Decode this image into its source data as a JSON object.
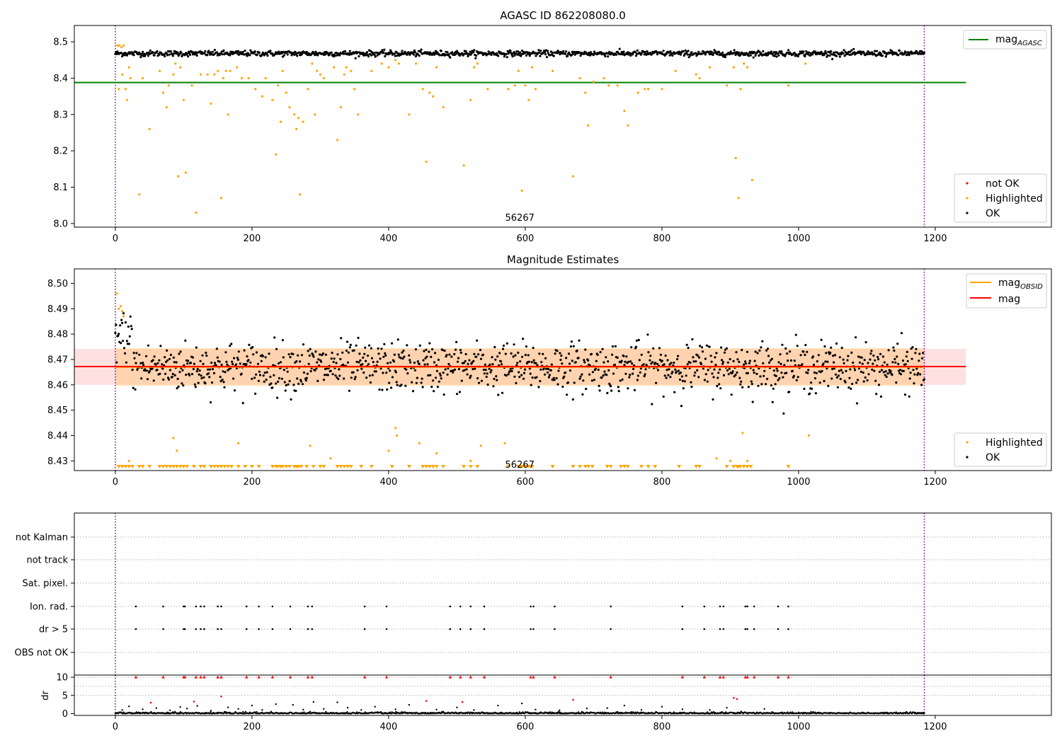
{
  "chart_data": [
    {
      "type": "scatter",
      "title": "AGASC ID 862208080.0",
      "xlim": [
        -60,
        1370
      ],
      "ylim": [
        7.99,
        8.545
      ],
      "xticks": [
        0,
        200,
        400,
        600,
        800,
        1000,
        1200
      ],
      "yticks": [
        8.0,
        8.1,
        8.2,
        8.3,
        8.4,
        8.5
      ],
      "vlines": [
        0,
        1184
      ],
      "annotation": {
        "text": "56267",
        "x": 592,
        "y": 8.0
      },
      "reference_line": {
        "name": "mag_AGASC",
        "value": 8.388,
        "x_range": [
          -60,
          1245
        ],
        "color": "#008000"
      },
      "legend_lines": [
        {
          "label": "mag",
          "sub": "AGASC",
          "color": "#008000"
        }
      ],
      "legend_points": [
        {
          "label": "not OK",
          "color": "#ff0000"
        },
        {
          "label": "Highlighted",
          "color": "#ffa500"
        },
        {
          "label": "OK",
          "color": "#000000"
        }
      ],
      "ok_band": {
        "center": 8.468,
        "spread": 0.007,
        "count": 1180
      },
      "highlighted_points": [
        [
          3,
          8.49
        ],
        [
          6,
          8.49
        ],
        [
          9,
          8.485
        ],
        [
          12,
          8.49
        ],
        [
          5,
          8.37
        ],
        [
          10,
          8.41
        ],
        [
          15,
          8.37
        ],
        [
          17,
          8.34
        ],
        [
          20,
          8.43
        ],
        [
          22,
          8.4
        ],
        [
          35,
          8.08
        ],
        [
          40,
          8.4
        ],
        [
          50,
          8.26
        ],
        [
          65,
          8.42
        ],
        [
          70,
          8.36
        ],
        [
          75,
          8.32
        ],
        [
          78,
          8.38
        ],
        [
          85,
          8.41
        ],
        [
          88,
          8.44
        ],
        [
          92,
          8.13
        ],
        [
          95,
          8.43
        ],
        [
          100,
          8.34
        ],
        [
          103,
          8.14
        ],
        [
          112,
          8.38
        ],
        [
          118,
          8.03
        ],
        [
          125,
          8.41
        ],
        [
          135,
          8.41
        ],
        [
          140,
          8.33
        ],
        [
          145,
          8.41
        ],
        [
          150,
          8.42
        ],
        [
          155,
          8.07
        ],
        [
          158,
          8.4
        ],
        [
          162,
          8.42
        ],
        [
          165,
          8.3
        ],
        [
          168,
          8.42
        ],
        [
          178,
          8.43
        ],
        [
          185,
          8.4
        ],
        [
          195,
          8.4
        ],
        [
          205,
          8.37
        ],
        [
          215,
          8.35
        ],
        [
          220,
          8.4
        ],
        [
          230,
          8.34
        ],
        [
          235,
          8.19
        ],
        [
          238,
          8.38
        ],
        [
          242,
          8.28
        ],
        [
          245,
          8.42
        ],
        [
          250,
          8.36
        ],
        [
          255,
          8.32
        ],
        [
          262,
          8.3
        ],
        [
          265,
          8.26
        ],
        [
          268,
          8.29
        ],
        [
          270,
          8.08
        ],
        [
          275,
          8.28
        ],
        [
          282,
          8.37
        ],
        [
          288,
          8.44
        ],
        [
          292,
          8.3
        ],
        [
          295,
          8.42
        ],
        [
          300,
          8.41
        ],
        [
          305,
          8.4
        ],
        [
          320,
          8.43
        ],
        [
          325,
          8.23
        ],
        [
          330,
          8.32
        ],
        [
          335,
          8.41
        ],
        [
          338,
          8.43
        ],
        [
          345,
          8.42
        ],
        [
          350,
          8.37
        ],
        [
          355,
          8.3
        ],
        [
          375,
          8.42
        ],
        [
          390,
          8.44
        ],
        [
          400,
          8.43
        ],
        [
          410,
          8.45
        ],
        [
          415,
          8.44
        ],
        [
          430,
          8.3
        ],
        [
          440,
          8.44
        ],
        [
          450,
          8.37
        ],
        [
          455,
          8.17
        ],
        [
          460,
          8.36
        ],
        [
          465,
          8.35
        ],
        [
          470,
          8.43
        ],
        [
          480,
          8.32
        ],
        [
          510,
          8.16
        ],
        [
          520,
          8.34
        ],
        [
          525,
          8.43
        ],
        [
          530,
          8.44
        ],
        [
          545,
          8.37
        ],
        [
          575,
          8.37
        ],
        [
          585,
          8.38
        ],
        [
          590,
          8.42
        ],
        [
          595,
          8.09
        ],
        [
          600,
          8.38
        ],
        [
          605,
          8.34
        ],
        [
          610,
          8.43
        ],
        [
          615,
          8.37
        ],
        [
          640,
          8.42
        ],
        [
          670,
          8.13
        ],
        [
          680,
          8.4
        ],
        [
          688,
          8.36
        ],
        [
          692,
          8.27
        ],
        [
          700,
          8.39
        ],
        [
          715,
          8.4
        ],
        [
          722,
          8.38
        ],
        [
          735,
          8.38
        ],
        [
          745,
          8.31
        ],
        [
          750,
          8.27
        ],
        [
          765,
          8.36
        ],
        [
          775,
          8.37
        ],
        [
          780,
          8.37
        ],
        [
          800,
          8.37
        ],
        [
          820,
          8.42
        ],
        [
          850,
          8.41
        ],
        [
          855,
          8.4
        ],
        [
          870,
          8.43
        ],
        [
          895,
          8.38
        ],
        [
          905,
          8.43
        ],
        [
          908,
          8.18
        ],
        [
          912,
          8.07
        ],
        [
          915,
          8.37
        ],
        [
          920,
          8.44
        ],
        [
          925,
          8.43
        ],
        [
          932,
          8.12
        ],
        [
          985,
          8.38
        ],
        [
          1010,
          8.44
        ]
      ]
    },
    {
      "type": "scatter",
      "title": "Magnitude Estimates",
      "xlim": [
        -60,
        1370
      ],
      "ylim": [
        8.4262,
        8.5057
      ],
      "xticks": [
        0,
        200,
        400,
        600,
        800,
        1000,
        1200
      ],
      "yticks": [
        8.43,
        8.44,
        8.45,
        8.46,
        8.47,
        8.48,
        8.49,
        8.5
      ],
      "ytick_labels": [
        "8.43",
        "8.44",
        "8.45",
        "8.46",
        "8.47",
        "8.48",
        "8.49",
        "8.50"
      ],
      "vlines": [
        0,
        1184
      ],
      "annotation": {
        "text": "56267",
        "x": 592,
        "y": 8.4285
      },
      "mag": {
        "value": 8.4672,
        "band": [
          8.46,
          8.4742
        ],
        "x_range": [
          -60,
          1245
        ],
        "color": "#ff0000"
      },
      "mag_obsid": {
        "value": 8.467,
        "band": [
          8.4595,
          8.4745
        ],
        "x_range": [
          0,
          1184
        ],
        "color": "#ffa500"
      },
      "legend_lines": [
        {
          "label": "mag",
          "sub": "OBSID",
          "color": "#ffa500"
        },
        {
          "label": "mag",
          "sub": "",
          "color": "#ff0000"
        }
      ],
      "legend_points": [
        {
          "label": "Highlighted",
          "color": "#ffa500"
        },
        {
          "label": "OK",
          "color": "#000000"
        }
      ],
      "ok_band": {
        "center": 8.467,
        "spread": 0.0065,
        "count": 1180
      },
      "highlighted_points": [
        [
          2,
          8.496
        ],
        [
          5,
          8.49
        ],
        [
          8,
          8.491
        ],
        [
          10,
          8.489
        ],
        [
          12,
          8.487
        ],
        [
          20,
          8.43
        ],
        [
          85,
          8.439
        ],
        [
          90,
          8.434
        ],
        [
          180,
          8.437
        ],
        [
          285,
          8.436
        ],
        [
          315,
          8.431
        ],
        [
          400,
          8.434
        ],
        [
          410,
          8.443
        ],
        [
          412,
          8.44
        ],
        [
          445,
          8.437
        ],
        [
          470,
          8.433
        ],
        [
          520,
          8.43
        ],
        [
          535,
          8.436
        ],
        [
          570,
          8.437
        ],
        [
          880,
          8.431
        ],
        [
          900,
          8.43
        ],
        [
          918,
          8.441
        ],
        [
          925,
          8.43
        ],
        [
          1015,
          8.44
        ]
      ],
      "floor_markers_x": [
        5,
        10,
        15,
        20,
        25,
        35,
        40,
        50,
        65,
        70,
        75,
        80,
        85,
        90,
        95,
        100,
        105,
        115,
        125,
        130,
        140,
        145,
        150,
        155,
        160,
        165,
        170,
        180,
        190,
        200,
        210,
        230,
        235,
        238,
        242,
        245,
        250,
        255,
        262,
        265,
        268,
        272,
        280,
        290,
        300,
        305,
        325,
        330,
        335,
        340,
        345,
        360,
        375,
        405,
        430,
        450,
        455,
        460,
        465,
        470,
        480,
        510,
        520,
        530,
        575,
        590,
        593,
        596,
        600,
        605,
        610,
        640,
        670,
        680,
        688,
        692,
        698,
        720,
        725,
        740,
        745,
        750,
        770,
        780,
        790,
        825,
        850,
        855,
        895,
        905,
        910,
        912,
        915,
        920,
        925,
        930,
        985
      ]
    },
    {
      "type": "scatter",
      "title": "",
      "xlim": [
        -60,
        1370
      ],
      "vlines": [
        0,
        1184
      ],
      "flag_rows": [
        "not Kalman",
        "not track",
        "Sat. pixel.",
        "Ion. rad.",
        "dr > 5",
        "OBS not OK"
      ],
      "flag_points_x": [
        30,
        70,
        100,
        102,
        118,
        125,
        130,
        150,
        155,
        192,
        210,
        230,
        256,
        282,
        288,
        365,
        397,
        490,
        505,
        520,
        540,
        608,
        612,
        643,
        725,
        830,
        862,
        885,
        890,
        922,
        925,
        935,
        970,
        985
      ]
    },
    {
      "type": "scatter",
      "title": "",
      "xlim": [
        -60,
        1370
      ],
      "ylim": [
        -0.5,
        10.6
      ],
      "xticks": [
        0,
        200,
        400,
        600,
        800,
        1000,
        1200
      ],
      "yticks": [
        0,
        5,
        10
      ],
      "ylabel": "dr",
      "vlines": [
        0,
        1184
      ],
      "threshold": 10,
      "above_threshold_x": [
        30,
        70,
        100,
        102,
        118,
        125,
        130,
        150,
        155,
        192,
        210,
        230,
        256,
        282,
        288,
        365,
        397,
        490,
        505,
        520,
        540,
        608,
        612,
        643,
        725,
        830,
        862,
        885,
        890,
        922,
        925,
        935,
        970,
        985
      ],
      "red_points": [
        [
          52,
          3.0
        ],
        [
          115,
          3.3
        ],
        [
          155,
          4.7
        ],
        [
          455,
          3.5
        ],
        [
          508,
          3.2
        ],
        [
          670,
          3.8
        ],
        [
          905,
          4.3
        ],
        [
          910,
          4.0
        ]
      ],
      "black_outliers": [
        [
          10,
          1.0
        ],
        [
          20,
          2.0
        ],
        [
          40,
          1.2
        ],
        [
          60,
          1.5
        ],
        [
          80,
          0.9
        ],
        [
          95,
          1.8
        ],
        [
          105,
          1.4
        ],
        [
          120,
          2.1
        ],
        [
          140,
          0.8
        ],
        [
          165,
          1.7
        ],
        [
          180,
          1.3
        ],
        [
          200,
          2.2
        ],
        [
          215,
          1.0
        ],
        [
          235,
          2.6
        ],
        [
          260,
          2.4
        ],
        [
          275,
          1.1
        ],
        [
          290,
          3.2
        ],
        [
          305,
          1.3
        ],
        [
          325,
          3.1
        ],
        [
          340,
          1.6
        ],
        [
          360,
          1.0
        ],
        [
          380,
          1.9
        ],
        [
          410,
          1.2
        ],
        [
          430,
          2.4
        ],
        [
          470,
          1.1
        ],
        [
          500,
          1.7
        ],
        [
          525,
          1.0
        ],
        [
          560,
          2.2
        ],
        [
          595,
          2.8
        ],
        [
          615,
          1.1
        ],
        [
          650,
          0.9
        ],
        [
          690,
          1.4
        ],
        [
          720,
          1.5
        ],
        [
          745,
          2.2
        ],
        [
          770,
          1.0
        ],
        [
          800,
          1.9
        ],
        [
          830,
          1.2
        ],
        [
          870,
          1.0
        ],
        [
          895,
          1.6
        ],
        [
          950,
          1.3
        ]
      ],
      "baseline_count": 1180
    }
  ]
}
